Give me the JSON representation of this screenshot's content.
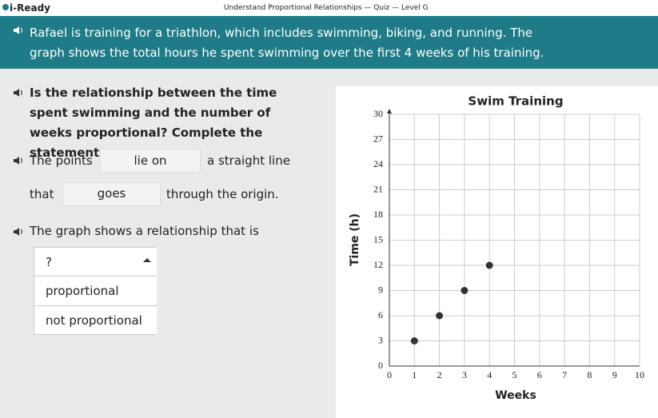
{
  "header": {
    "app": "i-Ready",
    "title": "Understand Proportional Relationships — Quiz — Level G"
  },
  "prompt": "Rafael is training for a triathlon, which includes swimming, biking, and running. The graph shows the total hours he spent swimming over the first 4 weeks of his training.",
  "question": "Is the relationship between the time spent swimming and the number of weeks proportional? Complete the statements.",
  "statement1": {
    "before": "The points",
    "blank": "lie on",
    "after": "a straight line"
  },
  "statement2": {
    "before": "that",
    "blank": "goes",
    "after": "through the origin."
  },
  "statement3": {
    "text": "The graph shows a relationship that is"
  },
  "dropdown": {
    "placeholder": "?",
    "options": [
      "proportional",
      "not proportional"
    ]
  },
  "chart_data": {
    "type": "scatter",
    "title": "Swim Training",
    "x_label": "Weeks",
    "y_label": "Time (h)",
    "x": [
      1,
      2,
      3,
      4
    ],
    "values": [
      3,
      6,
      9,
      12
    ],
    "color": "#333333",
    "xlim": [
      0,
      10
    ],
    "xticks": [
      0,
      1,
      2,
      3,
      4,
      5,
      6,
      7,
      8,
      9,
      10
    ],
    "ylim": [
      0,
      30
    ],
    "yticks": [
      0,
      3,
      6,
      9,
      12,
      15,
      18,
      21,
      24,
      27,
      30
    ],
    "grid": true
  }
}
